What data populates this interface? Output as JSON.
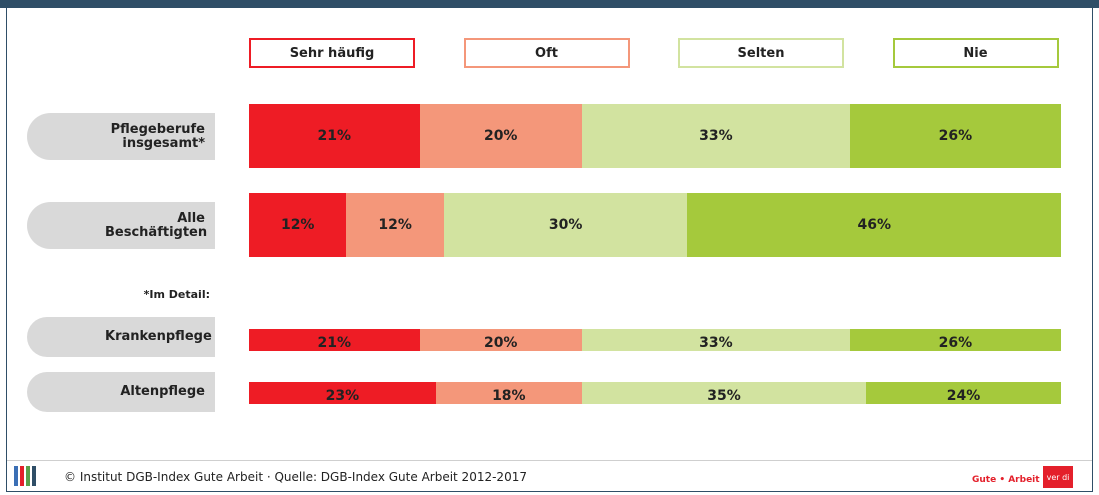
{
  "chart_data": {
    "type": "bar",
    "orientation": "horizontal",
    "stacked": true,
    "categories": [
      "Pflegeberufe insgesamt*",
      "Alle Beschäftigten",
      "Krankenpflege",
      "Altenpflege"
    ],
    "series": [
      {
        "name": "Sehr häufig",
        "color": "#ee1c25",
        "values": [
          21,
          12,
          21,
          23
        ],
        "value_labels": [
          "21%",
          "12%",
          "21%",
          "23%"
        ]
      },
      {
        "name": "Oft",
        "color": "#f4977a",
        "values": [
          20,
          12,
          20,
          18
        ],
        "value_labels": [
          "20%",
          "12%",
          "20%",
          "18%"
        ]
      },
      {
        "name": "Selten",
        "color": "#d2e3a0",
        "values": [
          33,
          30,
          33,
          35
        ],
        "value_labels": [
          "33%",
          "30%",
          "33%",
          "35%"
        ]
      },
      {
        "name": "Nie",
        "color": "#a5c93c",
        "values": [
          26,
          46,
          26,
          24
        ],
        "value_labels": [
          "26%",
          "46%",
          "26%",
          "24%"
        ]
      }
    ],
    "xlim": [
      0,
      100
    ],
    "annotation": "*Im Detail:",
    "source": "© Institut DGB-Index Gute Arbeit · Quelle: DGB-Index Gute Arbeit 2012-2017",
    "logos": [
      "Gute • Arbeit",
      "ver di"
    ]
  }
}
